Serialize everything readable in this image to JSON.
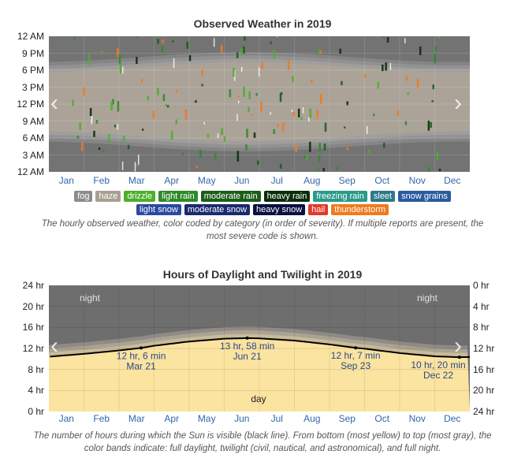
{
  "chart1": {
    "title": "Observed Weather in 2019",
    "y_ticks": [
      "12 AM",
      "9 PM",
      "6 PM",
      "3 PM",
      "12 PM",
      "9 AM",
      "6 AM",
      "3 AM",
      "12 AM"
    ],
    "months": [
      "Jan",
      "Feb",
      "Mar",
      "Apr",
      "May",
      "Jun",
      "Jul",
      "Aug",
      "Sep",
      "Oct",
      "Nov",
      "Dec"
    ],
    "legend_row1": [
      {
        "label": "fog",
        "color": "#8c8c8c"
      },
      {
        "label": "haze",
        "color": "#a89f93"
      },
      {
        "label": "drizzle",
        "color": "#4caf2a"
      },
      {
        "label": "light rain",
        "color": "#2e8b2a"
      },
      {
        "label": "moderate rain",
        "color": "#1a5e1a"
      },
      {
        "label": "heavy rain",
        "color": "#0a2e0a"
      },
      {
        "label": "freezing rain",
        "color": "#2a9a8a"
      },
      {
        "label": "sleet",
        "color": "#2a7a8a"
      },
      {
        "label": "snow grains",
        "color": "#2a5aa0"
      }
    ],
    "legend_row2": [
      {
        "label": "light snow",
        "color": "#2a4aa0"
      },
      {
        "label": "moderate snow",
        "color": "#1a2a70"
      },
      {
        "label": "heavy snow",
        "color": "#0a1040"
      },
      {
        "label": "hail",
        "color": "#e03a2a"
      },
      {
        "label": "thunderstorm",
        "color": "#f07a20"
      }
    ],
    "caption": "The hourly observed weather, color coded by category (in order of severity). If multiple reports are present, the most severe code is shown."
  },
  "chart2": {
    "title": "Hours of Daylight and Twilight in 2019",
    "y_left_ticks": [
      "24 hr",
      "20 hr",
      "16 hr",
      "12 hr",
      "8 hr",
      "4 hr",
      "0 hr"
    ],
    "y_right_ticks": [
      "0 hr",
      "4 hr",
      "8 hr",
      "12 hr",
      "16 hr",
      "20 hr",
      "24 hr"
    ],
    "months": [
      "Jan",
      "Feb",
      "Mar",
      "Apr",
      "May",
      "Jun",
      "Jul",
      "Aug",
      "Sep",
      "Oct",
      "Nov",
      "Dec"
    ],
    "night_label": "night",
    "day_label": "day",
    "annotations": [
      {
        "line1": "12 hr, 6 min",
        "line2": "Mar 21",
        "day": 80,
        "hours": 12.1
      },
      {
        "line1": "13 hr, 58 min",
        "line2": "Jun 21",
        "day": 172,
        "hours": 13.97
      },
      {
        "line1": "12 hr, 7 min",
        "line2": "Sep 23",
        "day": 266,
        "hours": 12.12
      },
      {
        "line1": "10 hr, 20 min",
        "line2": "Dec 22",
        "day": 356,
        "hours": 10.33
      }
    ],
    "caption": "The number of hours during which the Sun is visible (black line). From bottom (most yellow) to top (most gray), the color bands indicate: full daylight, twilight (civil, nautical, and astronomical), and full night."
  },
  "chart_data": [
    {
      "type": "heatmap",
      "title": "Observed Weather in 2019",
      "x_categories": [
        "Jan",
        "Feb",
        "Mar",
        "Apr",
        "May",
        "Jun",
        "Jul",
        "Aug",
        "Sep",
        "Oct",
        "Nov",
        "Dec"
      ],
      "y_range_hours": [
        0,
        24
      ],
      "legend": [
        "fog",
        "haze",
        "drizzle",
        "light rain",
        "moderate rain",
        "heavy rain",
        "freezing rain",
        "sleet",
        "snow grains",
        "light snow",
        "moderate snow",
        "heavy snow",
        "hail",
        "thunderstorm"
      ]
    },
    {
      "type": "area",
      "title": "Hours of Daylight and Twilight in 2019",
      "x_categories": [
        "Jan",
        "Feb",
        "Mar",
        "Apr",
        "May",
        "Jun",
        "Jul",
        "Aug",
        "Sep",
        "Oct",
        "Nov",
        "Dec"
      ],
      "ylim": [
        0,
        24
      ],
      "daylight_hours_by_day": [
        [
          1,
          10.45
        ],
        [
          32,
          11.0
        ],
        [
          60,
          11.6
        ],
        [
          80,
          12.1
        ],
        [
          91,
          12.5
        ],
        [
          121,
          13.3
        ],
        [
          152,
          13.85
        ],
        [
          172,
          13.97
        ],
        [
          182,
          13.92
        ],
        [
          213,
          13.5
        ],
        [
          244,
          12.75
        ],
        [
          266,
          12.12
        ],
        [
          274,
          11.95
        ],
        [
          305,
          11.1
        ],
        [
          335,
          10.5
        ],
        [
          356,
          10.33
        ],
        [
          365,
          10.38
        ]
      ]
    }
  ]
}
